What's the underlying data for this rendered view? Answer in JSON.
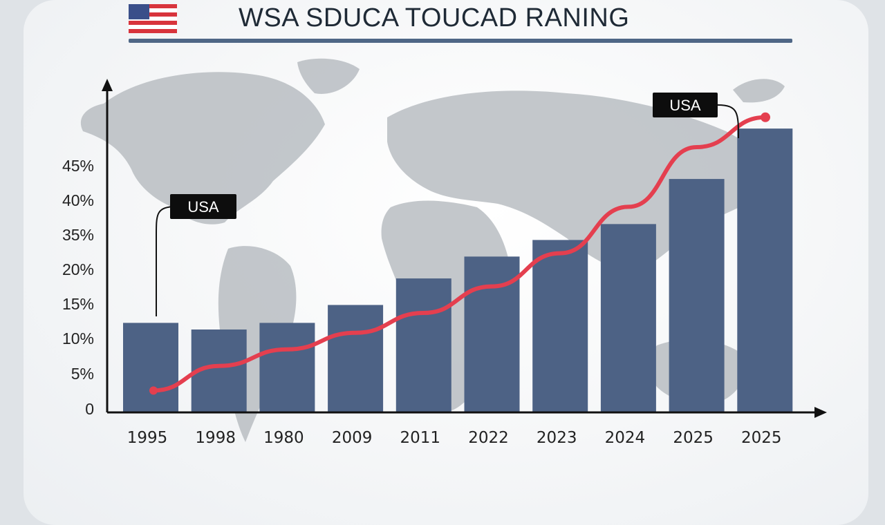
{
  "header": {
    "title": "WSA SDUCA TOUCAD RANING",
    "flag_icon": "usa-flag-icon"
  },
  "colors": {
    "bar": "#4d6285",
    "trend": "#e43f4f",
    "axis": "#111111",
    "map": "#b9bdc2"
  },
  "chart_data": {
    "type": "bar",
    "categories": [
      "1995",
      "1998",
      "1980",
      "2009",
      "2011",
      "2022",
      "2023",
      "2024",
      "2025",
      "2025"
    ],
    "values": [
      13.5,
      12.5,
      13.5,
      16.2,
      20.2,
      23.5,
      26.0,
      28.4,
      35.2,
      42.8
    ],
    "y_tick_labels": [
      "0",
      "5%",
      "10%",
      "15%",
      "20%",
      "35%",
      "40%",
      "45%"
    ],
    "trend_line": {
      "values": [
        3.3,
        7.0,
        9.5,
        12.0,
        15.0,
        19.0,
        24.0,
        31.0,
        40.0,
        44.5
      ]
    },
    "annotations": [
      {
        "text": "USA",
        "category_index": 0
      },
      {
        "text": "USA",
        "category_index": 9
      }
    ],
    "grid": false,
    "background": "world-map"
  }
}
